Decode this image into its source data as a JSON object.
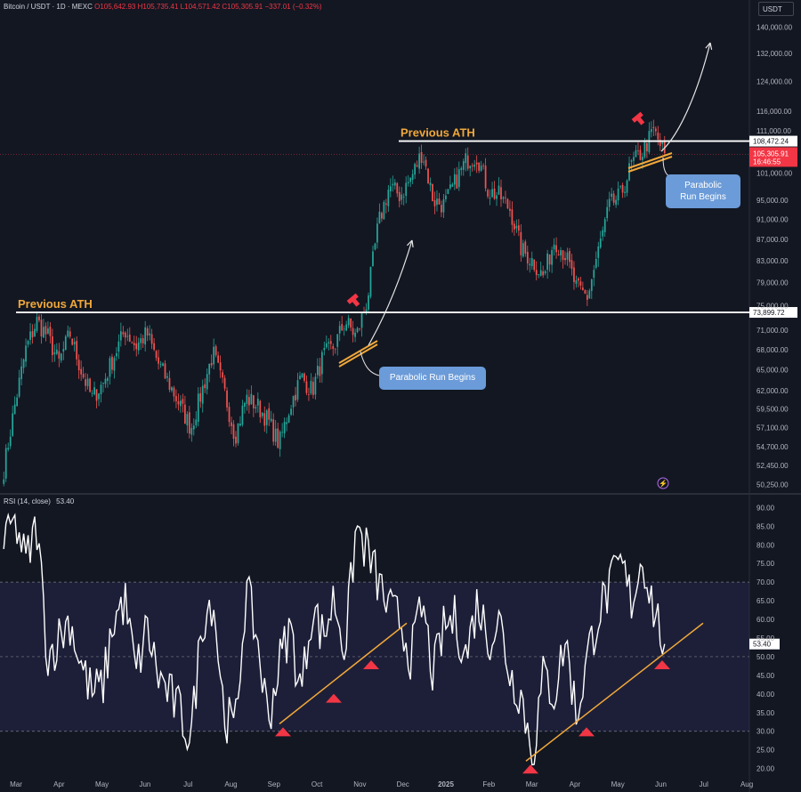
{
  "header": {
    "symbol": "Bitcoin / USDT · 1D · MEXC",
    "open": "O105,642.93",
    "high": "H105,735.41",
    "low": "L104,571.42",
    "close": "C105,305.91",
    "change": "−337.01 (−0.32%)"
  },
  "currency": "USDT",
  "rsi_header": {
    "label": "RSI (14, close)",
    "value": "53.40"
  },
  "colors": {
    "up": "#26a69a",
    "down": "#ef5350",
    "accent": "#f0a83a",
    "callout": "#6b9bd8",
    "marker": "#f23645",
    "rsi_line": "#ffffff"
  },
  "chart_data": [
    {
      "type": "candlestick",
      "title": "Bitcoin / USDT · 1D · MEXC",
      "y_scale": "log",
      "ylim": [
        49500,
        143000
      ],
      "y_ticks": [
        "140,000.00",
        "132,000.00",
        "124,000.00",
        "116,000.00",
        "111,000.00",
        "101,000.00",
        "95,000.00",
        "91,000.00",
        "87,000.00",
        "83,000.00",
        "79,000.00",
        "75,000.00",
        "71,000.00",
        "68,000.00",
        "65,000.00",
        "62,000.00",
        "59,500.00",
        "57,100.00",
        "54,700.00",
        "52,450.00",
        "50,250.00"
      ],
      "x_ticks": [
        "Mar",
        "Apr",
        "May",
        "Jun",
        "Jul",
        "Aug",
        "Sep",
        "Oct",
        "Nov",
        "Dec",
        "2025",
        "Feb",
        "Mar",
        "Apr",
        "May",
        "Jun",
        "Jul",
        "Aug"
      ],
      "close_path": [
        [
          "Mar",
          52000
        ],
        [
          "Mar",
          60000
        ],
        [
          "Mar",
          68000
        ],
        [
          "Mar",
          72500
        ],
        [
          "Apr",
          70000
        ],
        [
          "Apr",
          66000
        ],
        [
          "Apr",
          70500
        ],
        [
          "Apr",
          65000
        ],
        [
          "May",
          61000
        ],
        [
          "May",
          63000
        ],
        [
          "May",
          67000
        ],
        [
          "May",
          71000
        ],
        [
          "Jun",
          68500
        ],
        [
          "Jun",
          70500
        ],
        [
          "Jun",
          66000
        ],
        [
          "Jun",
          63000
        ],
        [
          "Jul",
          60000
        ],
        [
          "Jul",
          57000
        ],
        [
          "Jul",
          62000
        ],
        [
          "Jul",
          67500
        ],
        [
          "Aug",
          62000
        ],
        [
          "Aug",
          56000
        ],
        [
          "Aug",
          61000
        ],
        [
          "Aug",
          60000
        ],
        [
          "Sep",
          58000
        ],
        [
          "Sep",
          55000
        ],
        [
          "Sep",
          60000
        ],
        [
          "Sep",
          64000
        ],
        [
          "Oct",
          62000
        ],
        [
          "Oct",
          67000
        ],
        [
          "Oct",
          68500
        ],
        [
          "Oct",
          72500
        ],
        [
          "Nov",
          70000
        ],
        [
          "Nov",
          76000
        ],
        [
          "Nov",
          90000
        ],
        [
          "Nov",
          98000
        ],
        [
          "Dec",
          96000
        ],
        [
          "Dec",
          100000
        ],
        [
          "Dec",
          106000
        ],
        [
          "Dec",
          95000
        ],
        [
          "2025",
          94000
        ],
        [
          "2025",
          99000
        ],
        [
          "2025",
          104000
        ],
        [
          "2025",
          105000
        ],
        [
          "Feb",
          97000
        ],
        [
          "Feb",
          96000
        ],
        [
          "Feb",
          93000
        ],
        [
          "Feb",
          85000
        ],
        [
          "Mar",
          83000
        ],
        [
          "Mar",
          80000
        ],
        [
          "Mar",
          87000
        ],
        [
          "Mar",
          84000
        ],
        [
          "Apr",
          78000
        ],
        [
          "Apr",
          76500
        ],
        [
          "Apr",
          85000
        ],
        [
          "Apr",
          94000
        ],
        [
          "May",
          96000
        ],
        [
          "May",
          103000
        ],
        [
          "May",
          106000
        ],
        [
          "May",
          111000
        ],
        [
          "Jun",
          105300
        ]
      ],
      "last_price": "105,305.91",
      "countdown": "16:46:55",
      "levels": [
        {
          "label": "Previous ATH",
          "value": 73899.72,
          "tag": "73,899.72"
        },
        {
          "label": "Previous ATH",
          "value": 108472.24,
          "tag": "108,472.24"
        }
      ],
      "annotations": [
        "Parabolic Run Begins",
        "Parabolic Run Begins"
      ]
    },
    {
      "type": "line",
      "title": "RSI (14, close)",
      "ylim": [
        18,
        92
      ],
      "y_ticks": [
        "90.00",
        "85.00",
        "80.00",
        "75.00",
        "70.00",
        "65.00",
        "60.00",
        "55.00",
        "50.00",
        "45.00",
        "40.00",
        "35.00",
        "30.00",
        "25.00",
        "20.00"
      ],
      "levels": [
        70,
        50,
        30
      ],
      "last_value": "53.40",
      "values": [
        [
          "Mar",
          80
        ],
        [
          "Mar",
          87
        ],
        [
          "Mar",
          75
        ],
        [
          "Mar",
          85
        ],
        [
          "Apr",
          50
        ],
        [
          "Apr",
          55
        ],
        [
          "Apr",
          60
        ],
        [
          "Apr",
          48
        ],
        [
          "May",
          40
        ],
        [
          "May",
          42
        ],
        [
          "May",
          60
        ],
        [
          "May",
          65
        ],
        [
          "Jun",
          45
        ],
        [
          "Jun",
          58
        ],
        [
          "Jun",
          45
        ],
        [
          "Jun",
          40
        ],
        [
          "Jul",
          35
        ],
        [
          "Jul",
          28
        ],
        [
          "Jul",
          60
        ],
        [
          "Jul",
          66
        ],
        [
          "Aug",
          35
        ],
        [
          "Aug",
          30
        ],
        [
          "Aug",
          68
        ],
        [
          "Aug",
          55
        ],
        [
          "Sep",
          33
        ],
        [
          "Sep",
          48
        ],
        [
          "Sep",
          58
        ],
        [
          "Sep",
          40
        ],
        [
          "Oct",
          64
        ],
        [
          "Oct",
          55
        ],
        [
          "Oct",
          66
        ],
        [
          "Oct",
          52
        ],
        [
          "Nov",
          85
        ],
        [
          "Nov",
          78
        ],
        [
          "Nov",
          70
        ],
        [
          "Nov",
          62
        ],
        [
          "Dec",
          60
        ],
        [
          "Dec",
          50
        ],
        [
          "Dec",
          64
        ],
        [
          "Dec",
          45
        ],
        [
          "2025",
          58
        ],
        [
          "2025",
          60
        ],
        [
          "2025",
          50
        ],
        [
          "2025",
          65
        ],
        [
          "Feb",
          55
        ],
        [
          "Feb",
          60
        ],
        [
          "Feb",
          45
        ],
        [
          "Feb",
          40
        ],
        [
          "Mar",
          23
        ],
        [
          "Mar",
          45
        ],
        [
          "Mar",
          40
        ],
        [
          "Mar",
          55
        ],
        [
          "Apr",
          34
        ],
        [
          "Apr",
          50
        ],
        [
          "Apr",
          62
        ],
        [
          "Apr",
          68
        ],
        [
          "May",
          75
        ],
        [
          "May",
          65
        ],
        [
          "May",
          77
        ],
        [
          "May",
          63
        ],
        [
          "Jun",
          53.4
        ]
      ],
      "support_marker_values": [
        32,
        41,
        50,
        22,
        32,
        50
      ]
    }
  ]
}
